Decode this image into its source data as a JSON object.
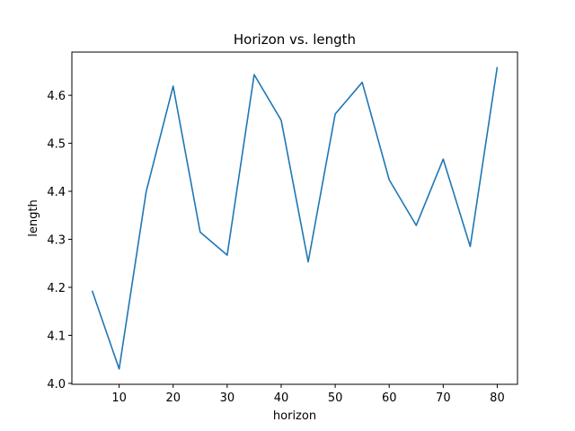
{
  "chart_data": {
    "type": "line",
    "title": "Horizon vs. length",
    "xlabel": "horizon",
    "ylabel": "length",
    "xlim": [
      1.25,
      83.75
    ],
    "ylim": [
      3.998,
      4.69
    ],
    "xticks": [
      10,
      20,
      30,
      40,
      50,
      60,
      70,
      80
    ],
    "yticks": [
      4.0,
      4.1,
      4.2,
      4.3,
      4.4,
      4.5,
      4.6
    ],
    "grid": false,
    "series": [
      {
        "color": "#1f77b4",
        "x": [
          5,
          10,
          15,
          20,
          25,
          30,
          35,
          40,
          45,
          50,
          55,
          60,
          65,
          70,
          75,
          80
        ],
        "y": [
          4.193,
          4.03,
          4.399,
          4.619,
          4.315,
          4.267,
          4.643,
          4.548,
          4.253,
          4.561,
          4.627,
          4.424,
          4.329,
          4.467,
          4.285,
          4.659
        ]
      }
    ]
  }
}
